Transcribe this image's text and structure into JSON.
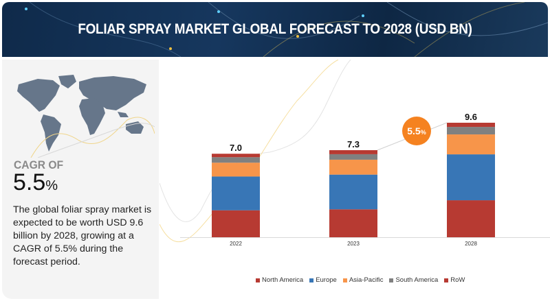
{
  "header": {
    "title": "FOLIAR SPRAY MARKET GLOBAL FORECAST TO 2028 (USD BN)"
  },
  "summary": {
    "cagr_label": "CAGR OF",
    "cagr_value": "5.5",
    "cagr_unit": "%",
    "description": "The global foliar spray market is expected to be worth USD 9.6 billion by 2028, growing at a CAGR of 5.5% during the forecast period.",
    "map_icon": "world-map"
  },
  "cagr_bubble": {
    "value": "5.5",
    "unit": "%",
    "color": "#f58220"
  },
  "chart_data": {
    "type": "bar",
    "stacked": true,
    "title": "Foliar Spray Market Global Forecast to 2028 (USD BN)",
    "xlabel": "",
    "ylabel": "",
    "categories": [
      "2022",
      "2023",
      "2028"
    ],
    "totals": [
      "7.0",
      "7.3",
      "9.6"
    ],
    "total_values": [
      7.0,
      7.3,
      9.6
    ],
    "series": [
      {
        "name": "North America",
        "color": "#b73a32",
        "values": [
          2.26,
          2.34,
          3.1
        ]
      },
      {
        "name": "Europe",
        "color": "#3876b6",
        "values": [
          2.83,
          2.91,
          3.85
        ]
      },
      {
        "name": "Asia-Pacific",
        "color": "#f7954a",
        "values": [
          1.16,
          1.25,
          1.67
        ]
      },
      {
        "name": "South America",
        "color": "#808080",
        "values": [
          0.46,
          0.46,
          0.63
        ]
      },
      {
        "name": "RoW",
        "color": "#b73a32",
        "values": [
          0.29,
          0.34,
          0.35
        ]
      }
    ],
    "ylim": [
      0,
      9.6
    ],
    "grid": false,
    "legend_position": "bottom",
    "annotation": "5.5% CAGR"
  }
}
